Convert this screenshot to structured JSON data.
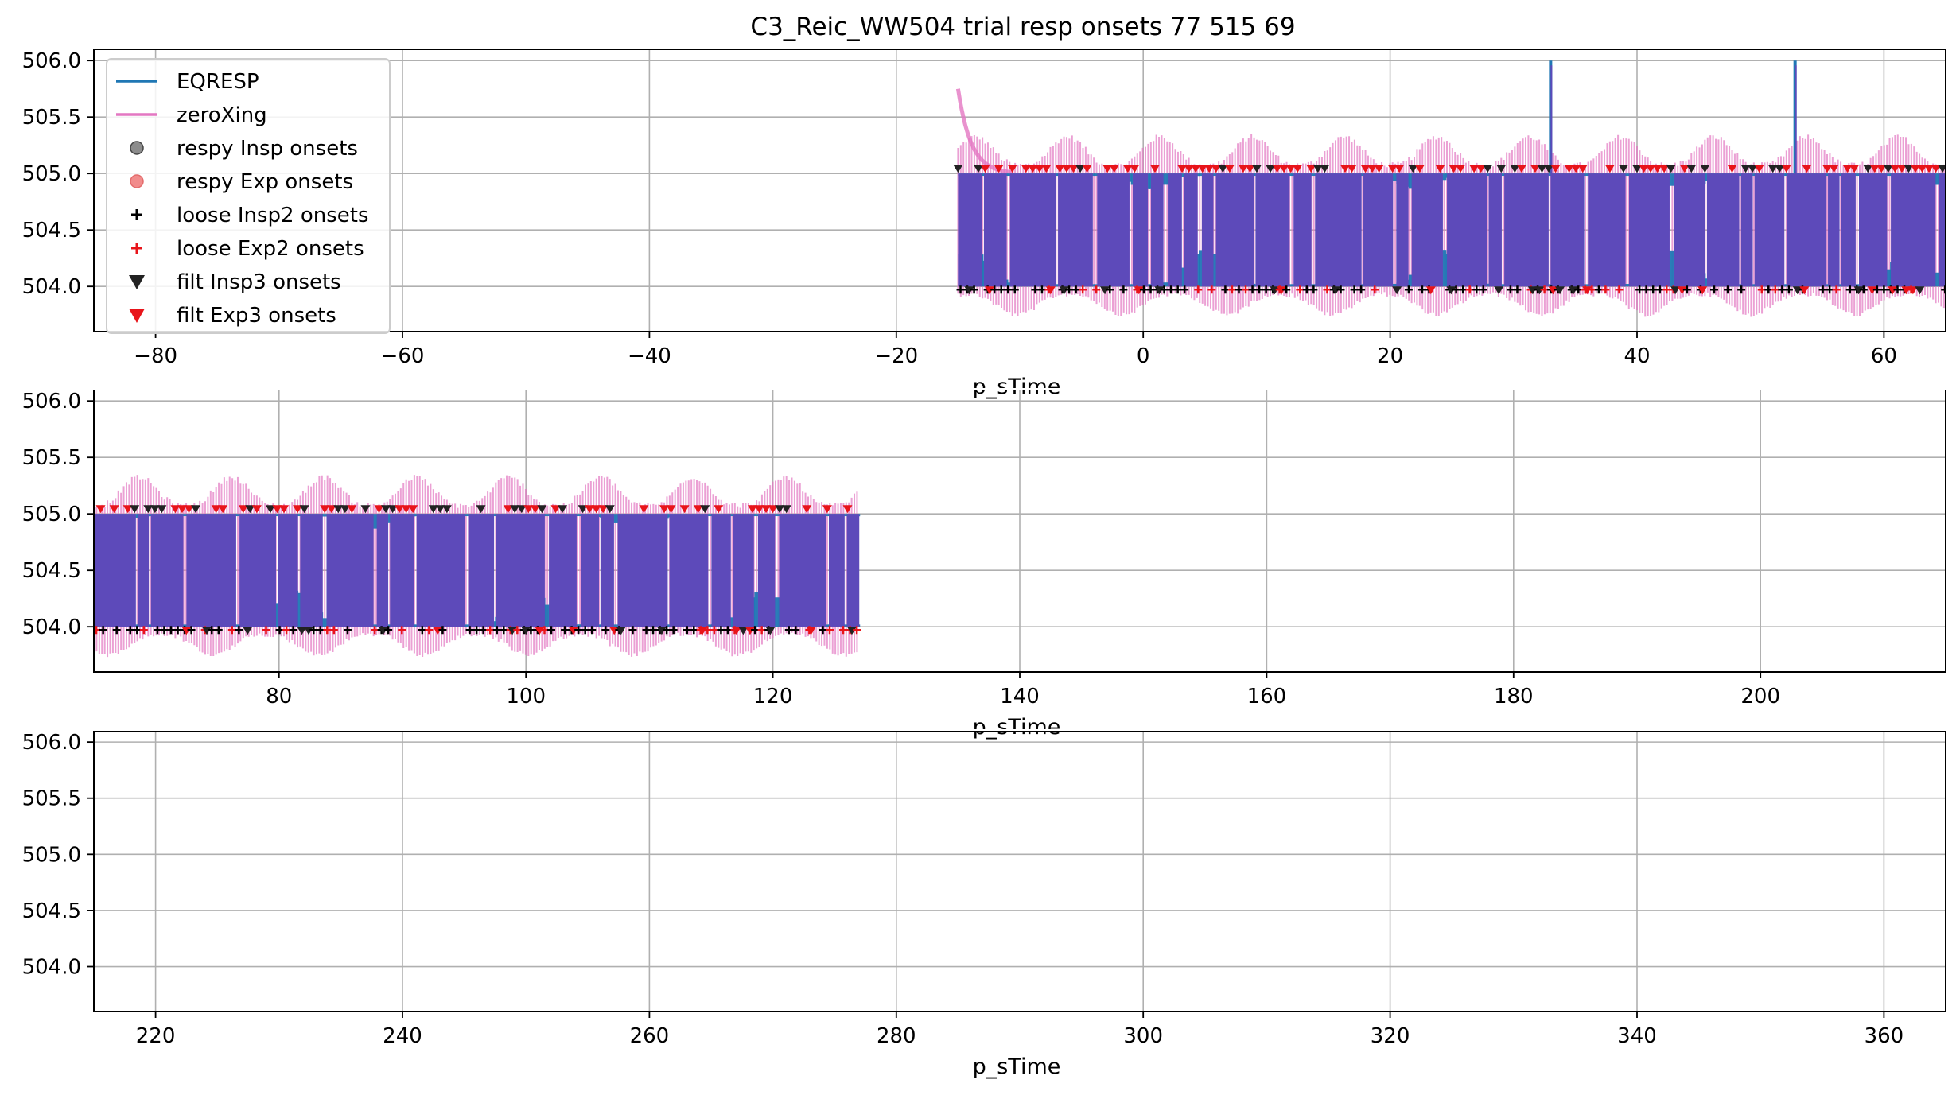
{
  "title": "C3_Reic_WW504 trial resp onsets 77 515 69",
  "chart_data": {
    "type": "line",
    "title": "C3_Reic_WW504 trial resp onsets 77 515 69",
    "xlabel": "p_sTime",
    "legend": {
      "placement": "upper-left (top panel)",
      "entries": [
        {
          "label": "EQRESP",
          "kind": "line",
          "color": "#1f77b4"
        },
        {
          "label": "zeroXing",
          "kind": "line",
          "color": "#e377c2"
        },
        {
          "label": "respy Insp onsets",
          "kind": "circle",
          "color": "#808080"
        },
        {
          "label": "respy Exp onsets",
          "kind": "circle",
          "color": "#f08080"
        },
        {
          "label": "loose Insp2 onsets",
          "kind": "plus",
          "color": "#000000"
        },
        {
          "label": "loose Exp2 onsets",
          "kind": "plus",
          "color": "#e8141a"
        },
        {
          "label": "filt Insp3 onsets",
          "kind": "triangle-down",
          "color": "#222222"
        },
        {
          "label": "filt Exp3 onsets",
          "kind": "triangle-down",
          "color": "#e8141a"
        }
      ]
    },
    "signal": {
      "binary_low": 504.0,
      "binary_high": 505.0,
      "data_start": -15,
      "data_end": 127,
      "spikes": [
        {
          "x": 33,
          "y": 506.0
        },
        {
          "x": 52.8,
          "y": 506.0
        }
      ],
      "zeroXing_initial_peak": {
        "x": -15,
        "y": 505.75
      }
    },
    "panels": [
      {
        "name": "panel-1",
        "xlim": [
          -85,
          65
        ],
        "ylim": [
          503.6,
          506.1
        ],
        "xticks": [
          -80,
          -60,
          -40,
          -20,
          0,
          20,
          40,
          60
        ],
        "xtick_labels": [
          "−80",
          "−60",
          "−40",
          "−20",
          "0",
          "20",
          "40",
          "60"
        ],
        "yticks": [
          504.0,
          504.5,
          505.0,
          505.5,
          506.0
        ],
        "ytick_labels": [
          "504.0",
          "504.5",
          "505.0",
          "505.5",
          "506.0"
        ],
        "xlabel": "p_sTime",
        "grid": true
      },
      {
        "name": "panel-2",
        "xlim": [
          65,
          215
        ],
        "ylim": [
          503.6,
          506.1
        ],
        "xticks": [
          80,
          100,
          120,
          140,
          160,
          180,
          200
        ],
        "xtick_labels": [
          "80",
          "100",
          "120",
          "140",
          "160",
          "180",
          "200"
        ],
        "yticks": [
          504.0,
          504.5,
          505.0,
          505.5,
          506.0
        ],
        "ytick_labels": [
          "504.0",
          "504.5",
          "505.0",
          "505.5",
          "506.0"
        ],
        "xlabel": "p_sTime",
        "grid": true
      },
      {
        "name": "panel-3",
        "xlim": [
          215,
          365
        ],
        "ylim": [
          503.6,
          506.1
        ],
        "xticks": [
          220,
          240,
          260,
          280,
          300,
          320,
          340,
          360
        ],
        "xtick_labels": [
          "220",
          "240",
          "260",
          "280",
          "300",
          "320",
          "340",
          "360"
        ],
        "yticks": [
          504.0,
          504.5,
          505.0,
          505.5,
          506.0
        ],
        "ytick_labels": [
          "504.0",
          "504.5",
          "505.0",
          "505.5",
          "506.0"
        ],
        "xlabel": "p_sTime",
        "grid": true
      }
    ]
  }
}
